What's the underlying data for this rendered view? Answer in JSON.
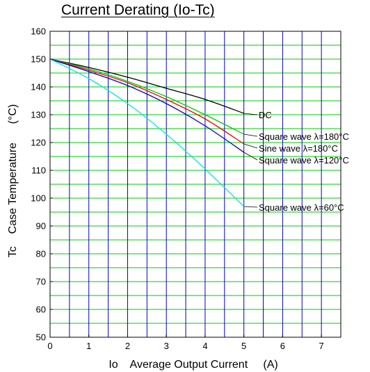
{
  "chart_data": {
    "type": "line",
    "title": "Current Derating  (Io-Tc)",
    "xlabel": "Io    Average Output Current     (A)",
    "ylabel": "Tc    Case Temperature      (°C)",
    "xlim": [
      0,
      7.5
    ],
    "ylim": [
      50,
      160
    ],
    "xticks": [
      "0",
      "1",
      "2",
      "3",
      "4",
      "5",
      "6",
      "7"
    ],
    "yticks": [
      "50",
      "60",
      "70",
      "80",
      "90",
      "100",
      "110",
      "120",
      "130",
      "140",
      "150",
      "160"
    ],
    "grid": true,
    "grid_colors": {
      "vertical": "#0000cc",
      "horizontal": "#00cc00"
    },
    "series": [
      {
        "name": "DC",
        "color": "#000000",
        "x": [
          0,
          1,
          2,
          3,
          4,
          5
        ],
        "y": [
          150,
          147,
          143.5,
          139.5,
          135.5,
          130.5
        ]
      },
      {
        "name": "Square wave  λ=180°C",
        "color": "#00cc00",
        "x": [
          0,
          1,
          2,
          3,
          4,
          5
        ],
        "y": [
          150,
          146.5,
          142,
          136.5,
          130,
          123
        ]
      },
      {
        "name": "Sine wave  λ=180°C",
        "color": "#ff0000",
        "x": [
          0,
          1,
          2,
          3,
          4,
          5
        ],
        "y": [
          150,
          146,
          141.5,
          135.5,
          128.5,
          119.5
        ]
      },
      {
        "name": "Square wave  λ=120°C",
        "color": "#0000cc",
        "x": [
          0,
          1,
          2,
          3,
          4,
          5
        ],
        "y": [
          150,
          145.5,
          140.5,
          134,
          126,
          116.5
        ]
      },
      {
        "name": "Square wave  λ=60°C",
        "color": "#00e5e5",
        "x": [
          0,
          1,
          2,
          3,
          4,
          5
        ],
        "y": [
          150,
          143,
          134,
          123,
          110.5,
          97
        ]
      }
    ]
  }
}
